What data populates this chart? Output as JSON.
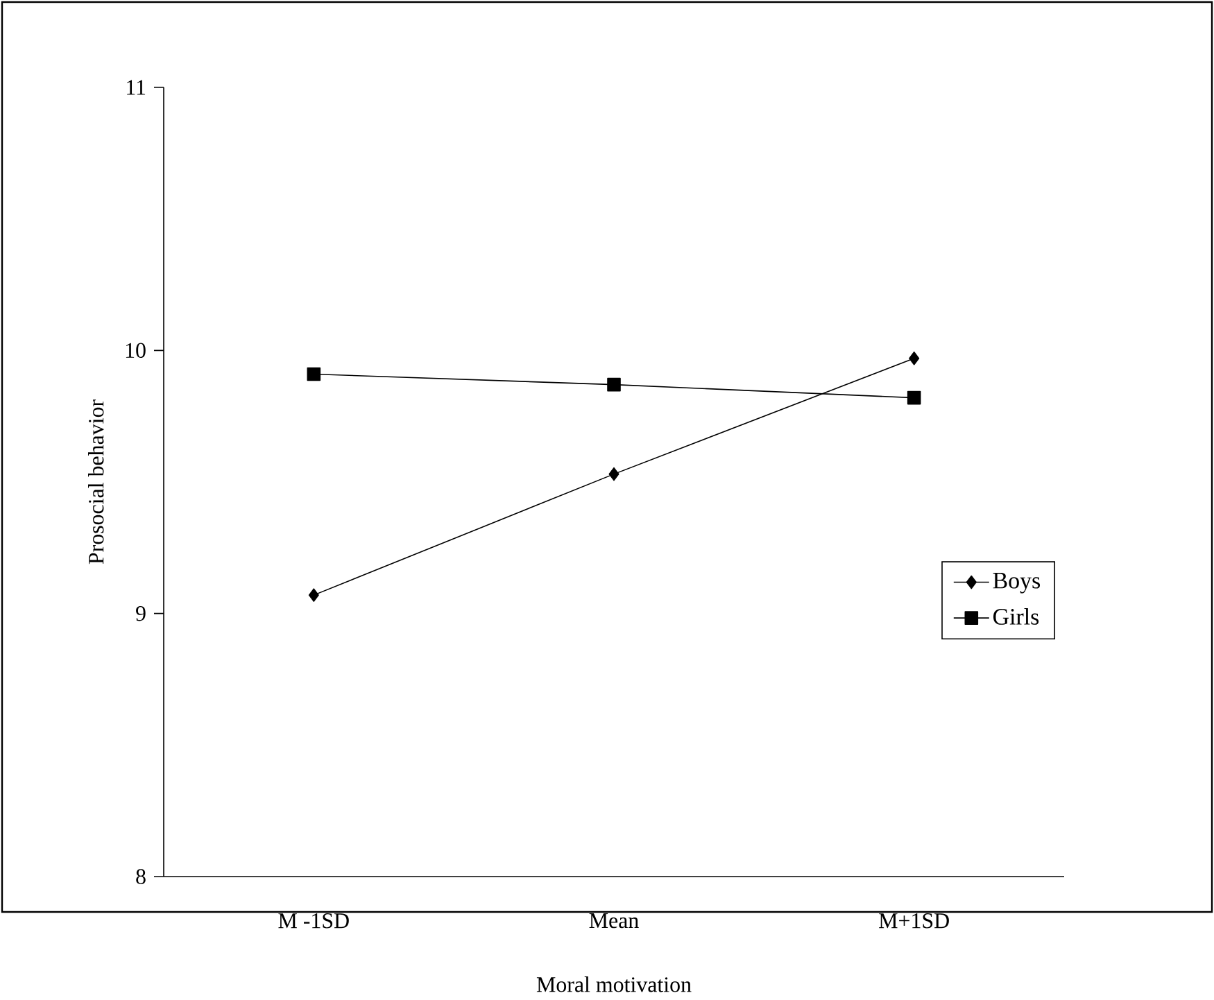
{
  "chart_data": {
    "type": "line",
    "xlabel": "Moral motivation",
    "ylabel": "Prosocial behavior",
    "categories": [
      "M -1SD",
      "Mean",
      "M+1SD"
    ],
    "series": [
      {
        "name": "Boys",
        "color": "#000000",
        "marker": "diamond",
        "values": [
          9.07,
          9.53,
          9.97
        ]
      },
      {
        "name": "Girls",
        "color": "#000000",
        "marker": "square",
        "values": [
          9.91,
          9.87,
          9.82
        ]
      }
    ],
    "ylim": [
      8,
      11
    ],
    "yticks": [
      8,
      9,
      10,
      11
    ],
    "legend": "right",
    "grid": false
  }
}
